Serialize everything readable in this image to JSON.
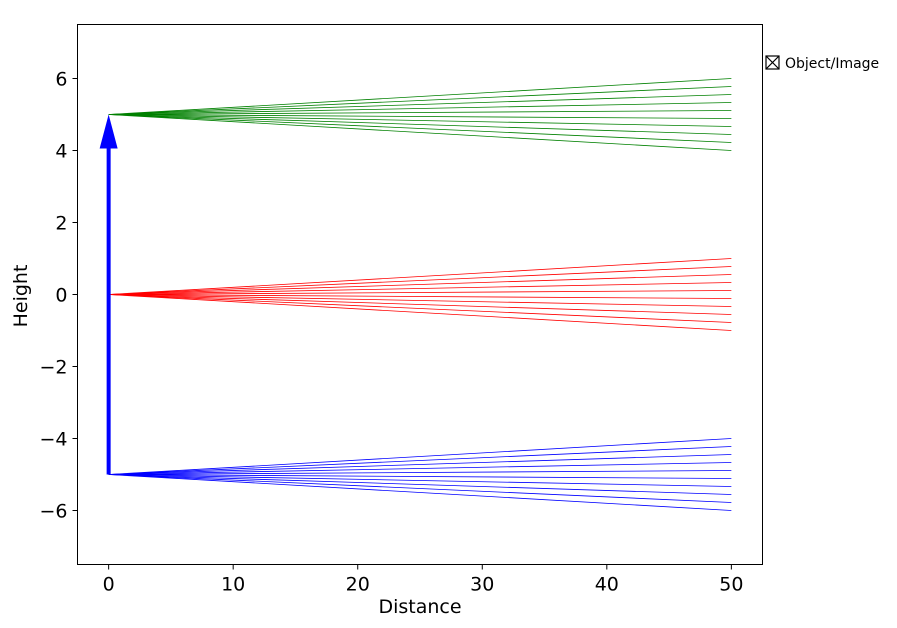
{
  "chart_data": {
    "type": "line",
    "title": "",
    "xlabel": "Distance",
    "ylabel": "Height",
    "xlim": [
      -2.5,
      52.5
    ],
    "ylim": [
      -7.5,
      7.5
    ],
    "xticks": [
      0,
      10,
      20,
      30,
      40,
      50
    ],
    "yticks": [
      -6,
      -4,
      -2,
      0,
      2,
      4,
      6
    ],
    "grid": false,
    "object": {
      "x": 0,
      "y_start": -5,
      "y_end": 5,
      "color": "#0000ff"
    },
    "ray_fans": [
      {
        "color": "#008000",
        "x_start": 0,
        "y_start": 5,
        "x_end": 50,
        "y_end_min": 4,
        "y_end_max": 6,
        "count": 10
      },
      {
        "color": "#ff0000",
        "x_start": 0,
        "y_start": 0,
        "x_end": 50,
        "y_end_min": -1,
        "y_end_max": 1,
        "count": 10
      },
      {
        "color": "#0000ff",
        "x_start": 0,
        "y_start": -5,
        "x_end": 50,
        "y_end_min": -6,
        "y_end_max": -4,
        "count": 10
      }
    ],
    "legend": {
      "label": "Object/Image",
      "icon": "box-cross-icon",
      "placement": "outside-top-right"
    }
  }
}
